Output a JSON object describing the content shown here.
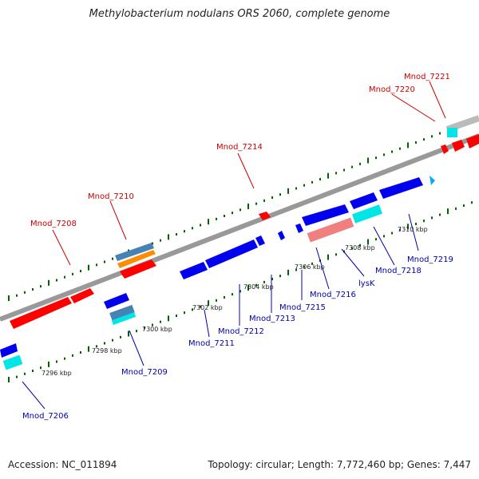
{
  "title": "Methylobacterium nodulans ORS 2060, complete genome",
  "footer": {
    "accession": "Accession: NC_011894",
    "stats": "Topology: circular; Length: 7,772,460 bp; Genes: 7,447"
  },
  "colors": {
    "forward_gene": "#ff0000",
    "reverse_gene": "#0000ee",
    "trna": "#00e5e5",
    "pseudo": "#f08080",
    "rrna": "#4682b4",
    "misc": "#ff8c00",
    "backbone": "#999999",
    "tick": "#006400"
  },
  "forward_labels": [
    "Mnod_7208",
    "Mnod_7210",
    "Mnod_7214",
    "Mnod_7220",
    "Mnod_7221"
  ],
  "reverse_labels": [
    "Mnod_7206",
    "Mnod_7209",
    "Mnod_7211",
    "Mnod_7212",
    "Mnod_7213",
    "Mnod_7215",
    "Mnod_7216",
    "lysK",
    "Mnod_7218",
    "Mnod_7219"
  ],
  "kbp_labels": [
    "7296 kbp",
    "7298 kbp",
    "7300 kbp",
    "7302 kbp",
    "7304 kbp",
    "7306 kbp",
    "7308 kbp",
    "7310 kbp"
  ]
}
